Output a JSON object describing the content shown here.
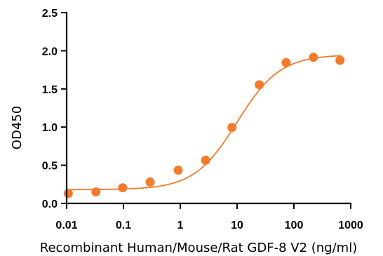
{
  "chart_data": {
    "type": "scatter",
    "title": "",
    "xlabel": "Recombinant Human/Mouse/Rat GDF-8 V2 (ng/ml)",
    "ylabel": "OD450",
    "x_scale": "log",
    "xlim": [
      0.01,
      1000
    ],
    "ylim": [
      0,
      2.5
    ],
    "x_ticks": [
      0.01,
      0.1,
      1,
      10,
      100,
      1000
    ],
    "x_tick_labels": [
      "0.01",
      "0.1",
      "1",
      "10",
      "100",
      "1000"
    ],
    "y_ticks": [
      0,
      0.5,
      1,
      1.5,
      2,
      2.5
    ],
    "y_tick_labels": [
      "0.0",
      "0.5",
      "1.0",
      "1.5",
      "2.0",
      "2.5"
    ],
    "grid": false,
    "legend": "none",
    "colors": {
      "points": "#f47a2c",
      "curve": "#f47a2c",
      "axes": "#000000"
    },
    "series": [
      {
        "x": [
          0.0107,
          0.0328,
          0.0968,
          0.295,
          0.918,
          2.79,
          8.13,
          24.6,
          73.1,
          221,
          647
        ],
        "y": [
          0.13,
          0.15,
          0.205,
          0.28,
          0.435,
          0.565,
          0.995,
          1.555,
          1.845,
          1.915,
          1.875
        ]
      }
    ],
    "fit": {
      "type": "4PL",
      "bottom": 0.18,
      "top": 1.95,
      "ec50": 10,
      "hill": 1.15
    }
  }
}
